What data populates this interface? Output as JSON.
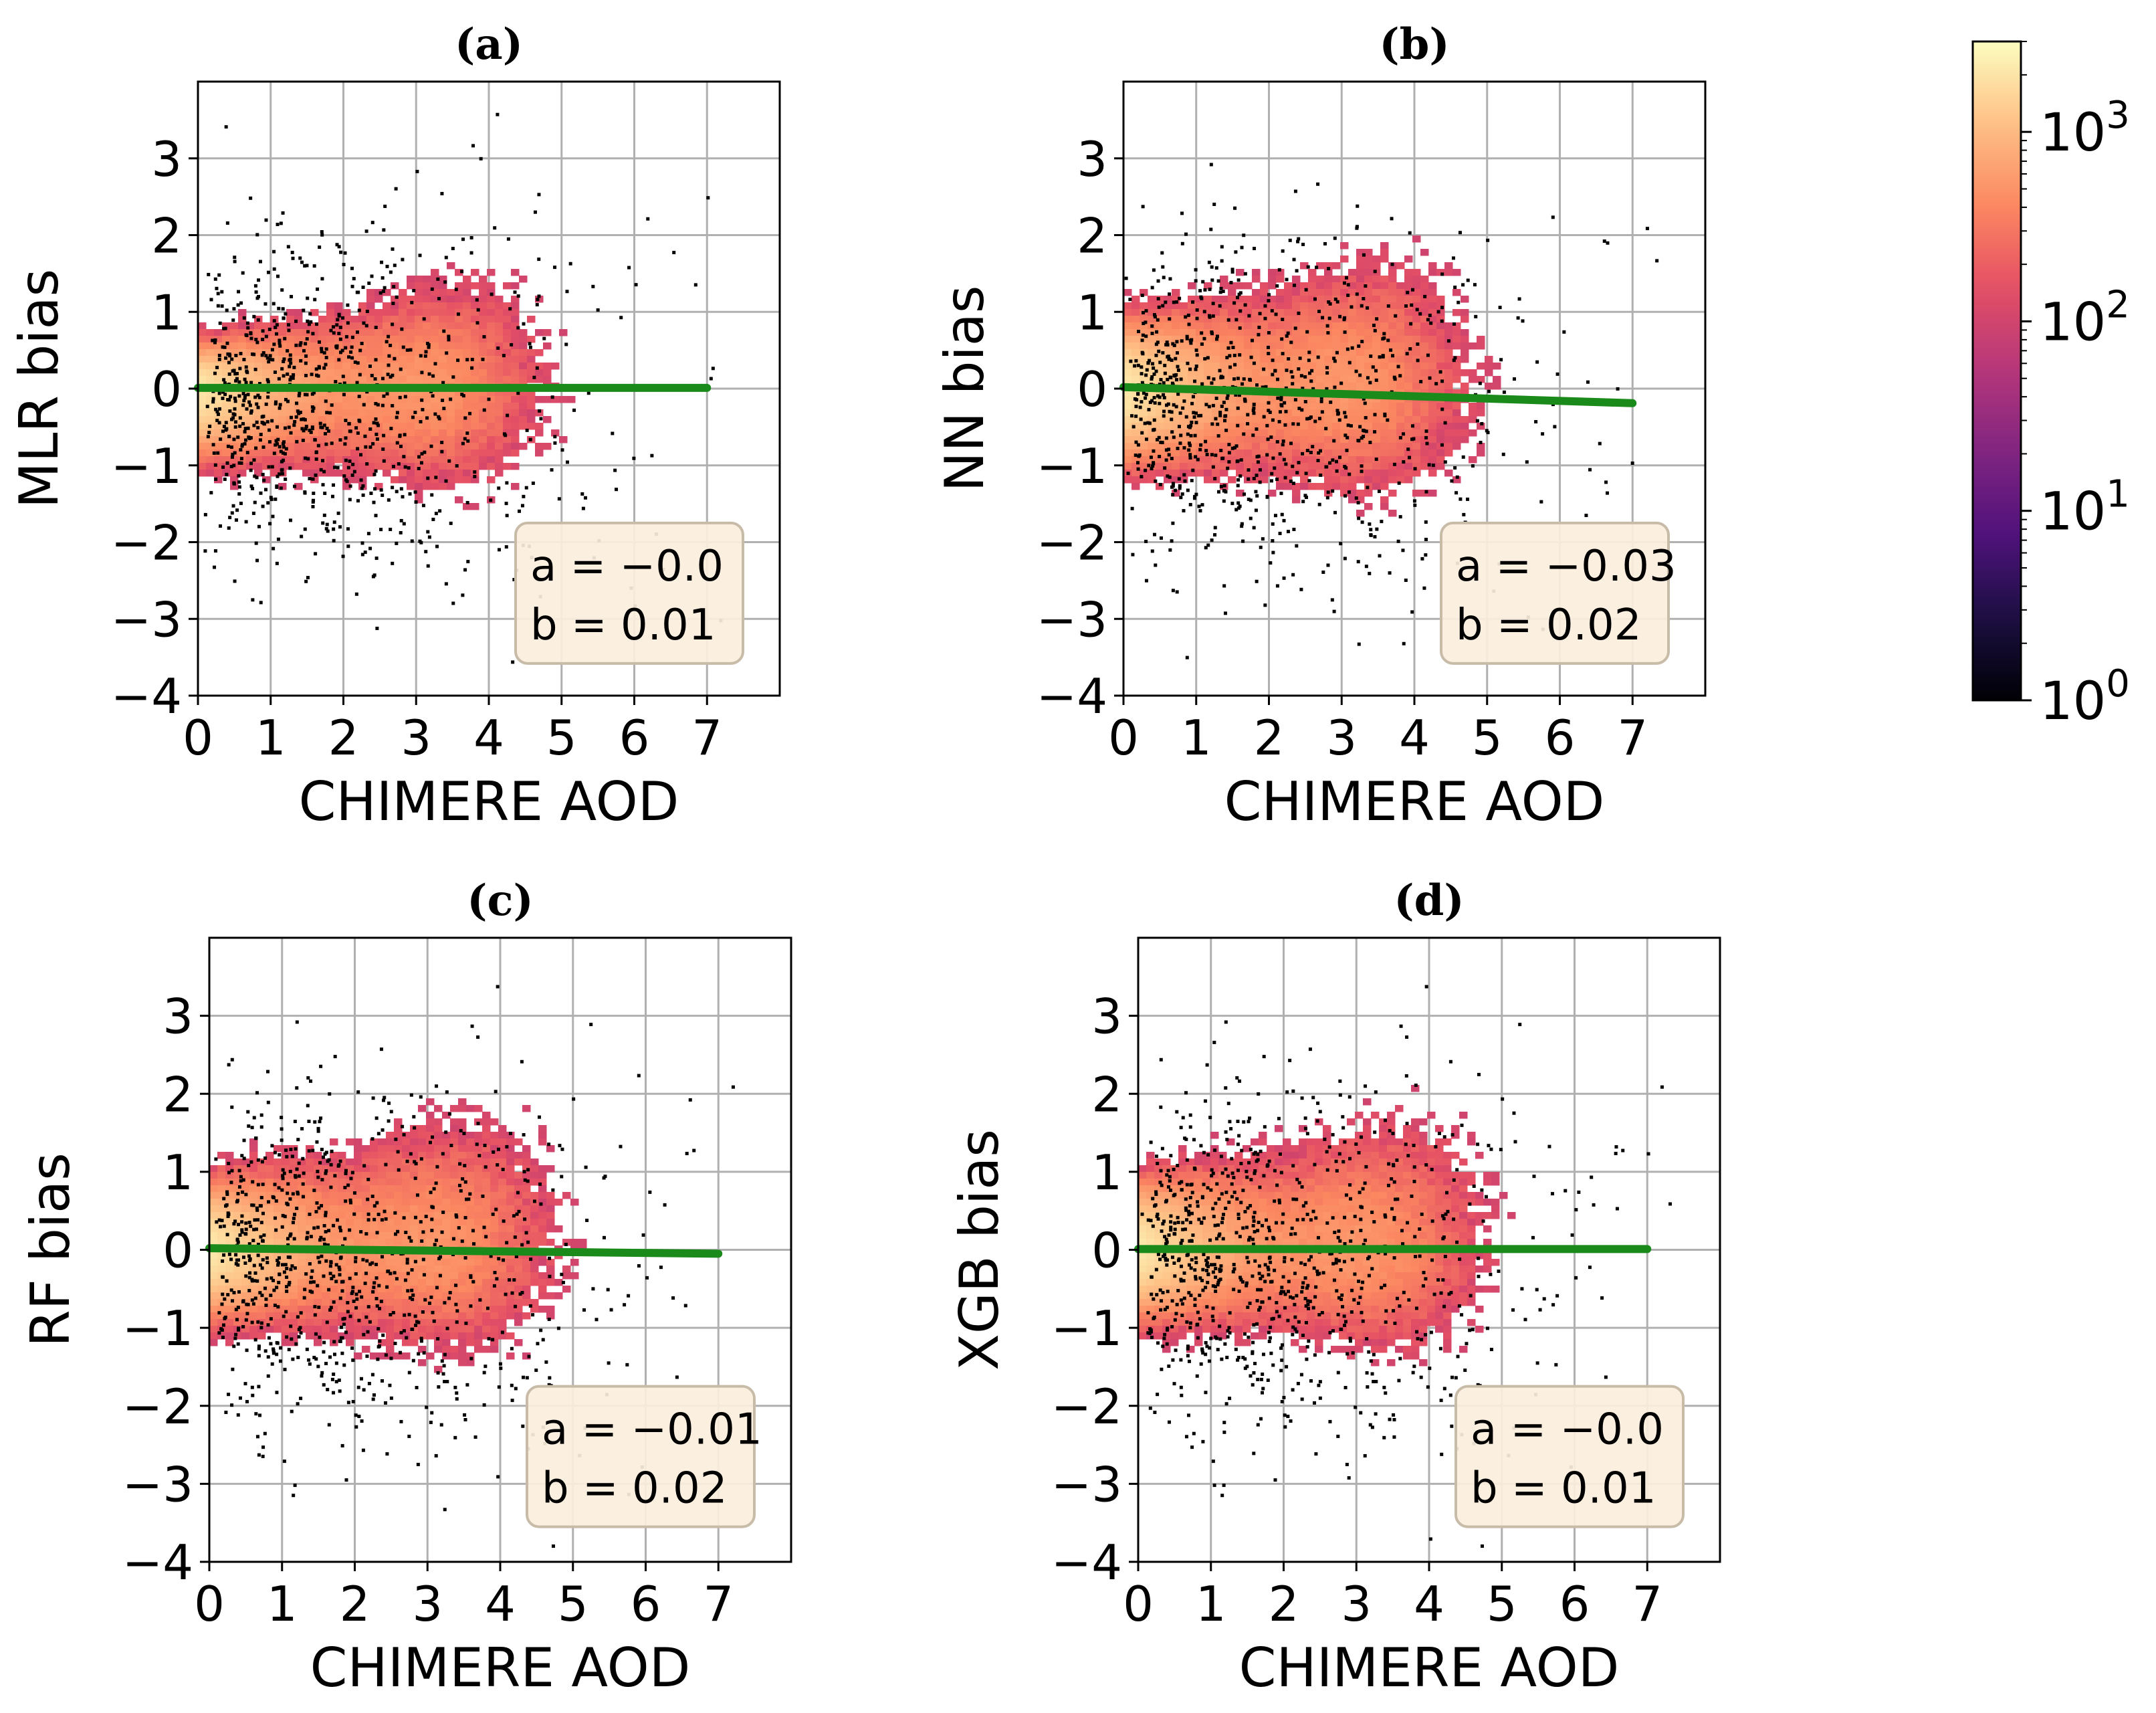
{
  "figure": {
    "colormap": "magma",
    "colorbar": {
      "scale": "log",
      "range": [
        1,
        3000
      ],
      "ticks": [
        {
          "value": 1,
          "base": "10",
          "exp": "0"
        },
        {
          "value": 10,
          "base": "10",
          "exp": "1"
        },
        {
          "value": 100,
          "base": "10",
          "exp": "2"
        },
        {
          "value": 1000,
          "base": "10",
          "exp": "3"
        }
      ]
    },
    "fit_line_color": "#1a8a1a",
    "annotation_box_color": "#fbeedd"
  },
  "chart_data": [
    {
      "type": "heatmap",
      "panel_label": "(a)",
      "xlabel": "CHIMERE AOD",
      "ylabel": "MLR bias",
      "xlim": [
        0,
        8
      ],
      "ylim": [
        -4,
        4
      ],
      "xticks": [
        0,
        1,
        2,
        3,
        4,
        5,
        6,
        7
      ],
      "yticks": [
        -4,
        -3,
        -2,
        -1,
        0,
        1,
        2,
        3
      ],
      "grid": true,
      "fit": {
        "a": -0.0,
        "b": 0.01,
        "x_range": [
          0,
          7
        ]
      },
      "annotation": [
        "a = −0.0",
        "b = 0.01"
      ],
      "spread": {
        "pos": 0.3,
        "neg": 0.45
      }
    },
    {
      "type": "heatmap",
      "panel_label": "(b)",
      "xlabel": "CHIMERE AOD",
      "ylabel": "NN bias",
      "xlim": [
        0,
        8
      ],
      "ylim": [
        -4,
        4
      ],
      "xticks": [
        0,
        1,
        2,
        3,
        4,
        5,
        6,
        7
      ],
      "yticks": [
        -4,
        -3,
        -2,
        -1,
        0,
        1,
        2,
        3
      ],
      "grid": true,
      "fit": {
        "a": -0.03,
        "b": 0.02,
        "x_range": [
          0,
          7
        ]
      },
      "annotation": [
        "a = −0.03",
        "b = 0.02"
      ],
      "spread": {
        "pos": 0.45,
        "neg": 0.5
      }
    },
    {
      "type": "heatmap",
      "panel_label": "(c)",
      "xlabel": "CHIMERE AOD",
      "ylabel": "RF bias",
      "xlim": [
        0,
        8
      ],
      "ylim": [
        -4,
        4
      ],
      "xticks": [
        0,
        1,
        2,
        3,
        4,
        5,
        6,
        7
      ],
      "yticks": [
        -4,
        -3,
        -2,
        -1,
        0,
        1,
        2,
        3
      ],
      "grid": true,
      "fit": {
        "a": -0.01,
        "b": 0.02,
        "x_range": [
          0,
          7
        ]
      },
      "annotation": [
        "a = −0.01",
        "b = 0.02"
      ],
      "spread": {
        "pos": 0.45,
        "neg": 0.45
      }
    },
    {
      "type": "heatmap",
      "panel_label": "(d)",
      "xlabel": "CHIMERE AOD",
      "ylabel": "XGB bias",
      "xlim": [
        0,
        8
      ],
      "ylim": [
        -4,
        4
      ],
      "xticks": [
        0,
        1,
        2,
        3,
        4,
        5,
        6,
        7
      ],
      "yticks": [
        -4,
        -3,
        -2,
        -1,
        0,
        1,
        2,
        3
      ],
      "grid": true,
      "fit": {
        "a": -0.0,
        "b": 0.01,
        "x_range": [
          0,
          7
        ]
      },
      "annotation": [
        "a = −0.0",
        "b = 0.01"
      ],
      "spread": {
        "pos": 0.45,
        "neg": 0.45
      }
    }
  ]
}
